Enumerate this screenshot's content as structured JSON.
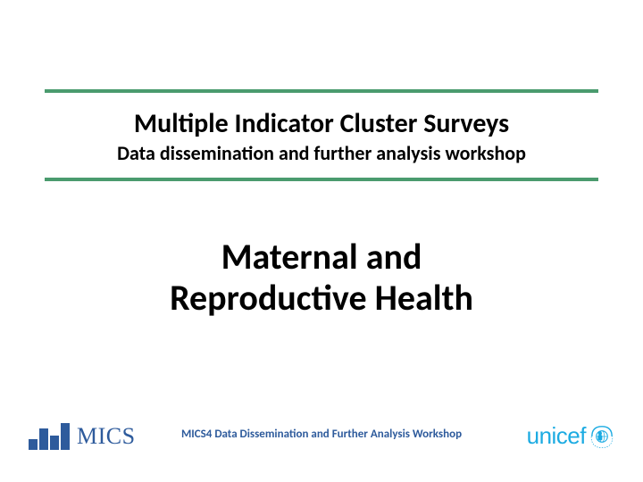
{
  "colors": {
    "rule": "#4a9b6e",
    "text": "#000000",
    "mics_blue": "#2e5b9c",
    "footer_blue": "#2e5b9c",
    "unicef_blue": "#1cabe2",
    "background": "#ffffff"
  },
  "header": {
    "title": "Multiple Indicator Cluster Surveys",
    "subtitle": "Data dissemination and further analysis workshop"
  },
  "topic": {
    "line1": "Maternal and",
    "line2": "Reproductive Health"
  },
  "footer": {
    "caption": "MICS4 Data Dissemination and Further Analysis Workshop"
  },
  "logos": {
    "mics": {
      "label": "MICS",
      "bar_heights": [
        12,
        24,
        16,
        30
      ],
      "bar_color": "#2e5b9c",
      "text_color": "#2e5b9c"
    },
    "unicef": {
      "label": "unicef",
      "color": "#1cabe2"
    }
  }
}
